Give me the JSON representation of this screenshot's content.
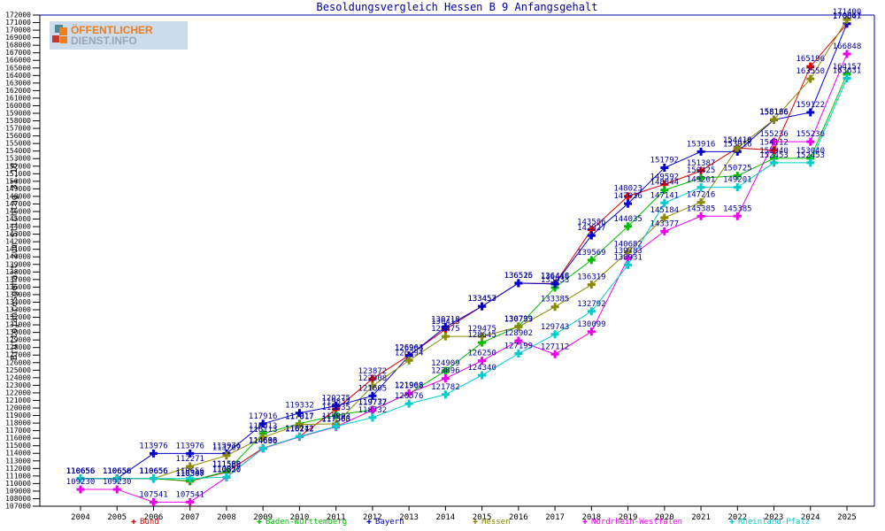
{
  "logo": {
    "line1": "ÖFFENTLICHER",
    "line2": "DIENST.INFO"
  },
  "title": "Besoldungsvergleich Hessen B 9 Anfangsgehalt",
  "chart_data": {
    "type": "line",
    "title": "Besoldungsvergleich Hessen B 9 Anfangsgehalt",
    "xlabel": "",
    "ylabel": "Bruttojahresgehalt zum Stichtag 31.10.",
    "x": [
      2004,
      2005,
      2006,
      2007,
      2008,
      2009,
      2010,
      2011,
      2012,
      2013,
      2014,
      2015,
      2016,
      2017,
      2018,
      2019,
      2020,
      2021,
      2022,
      2023,
      2024,
      2025
    ],
    "ylim": [
      107000,
      172000
    ],
    "ytick_step": 1000,
    "grid": false,
    "legend_position": "bottom",
    "point_labels": true,
    "label_color": "#000099",
    "axis_color": "#000000",
    "frame_color": "#0000aa",
    "series": [
      {
        "name": "Bund",
        "color": "#dd0000",
        "values": [
          110656,
          110656,
          110656,
          110307,
          111506,
          114696,
          116212,
          119832,
          123872,
          126964,
          130413,
          133457,
          136515,
          136448,
          143586,
          148023,
          149592,
          151387,
          154410,
          154112,
          165196,
          170847
        ]
      },
      {
        "name": "Baden-Württemberg",
        "color": "#00bb00",
        "values": [
          110656,
          110656,
          110656,
          110348,
          111589,
          116613,
          117917,
          119035,
          119777,
          121908,
          124909,
          128645,
          130799,
          135933,
          139569,
          144035,
          148844,
          150425,
          150725,
          153040,
          153040,
          164157
        ]
      },
      {
        "name": "Bayern",
        "color": "#0000cc",
        "values": [
          110656,
          110656,
          113976,
          113976,
          113976,
          117916,
          119332,
          120275,
          121605,
          126903,
          130718,
          133453,
          136526,
          136416,
          142827,
          147036,
          151792,
          153916,
          153916,
          158136,
          159122,
          170861
        ]
      },
      {
        "name": "Hessen",
        "color": "#8a8a00",
        "values": [
          110656,
          110656,
          110656,
          112271,
          113707,
          116113,
          117817,
          117903,
          122908,
          126294,
          129475,
          129475,
          130733,
          133385,
          136319,
          140682,
          145184,
          147216,
          154416,
          158166,
          163550,
          171400
        ]
      },
      {
        "name": "Nordrhein-Westfalen",
        "color": "#ee00ee",
        "values": [
          109230,
          109230,
          107541,
          107541,
          110820,
          114636,
          116172,
          117503,
          119732,
          121968,
          123896,
          126250,
          128902,
          127112,
          130099,
          139783,
          143377,
          145385,
          145385,
          155236,
          155236,
          166848
        ]
      },
      {
        "name": "Rheinland-Pfalz",
        "color": "#00cccc",
        "values": [
          110656,
          110656,
          110656,
          110656,
          110850,
          114663,
          116242,
          117568,
          118732,
          120576,
          121782,
          124340,
          127199,
          129743,
          132792,
          138931,
          147141,
          149201,
          149201,
          152453,
          152453,
          163631
        ]
      }
    ]
  }
}
